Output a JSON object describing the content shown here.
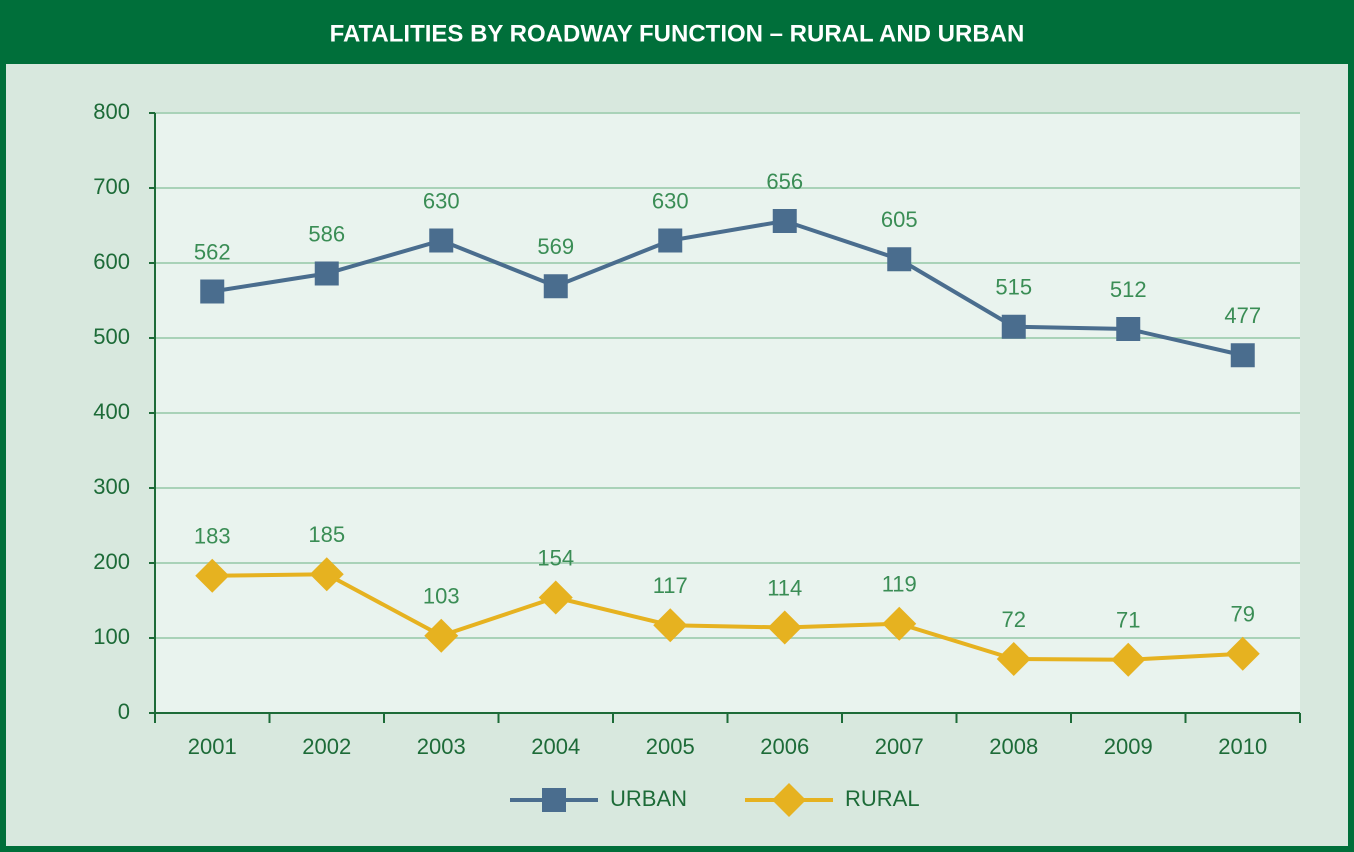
{
  "chart_data": {
    "type": "line",
    "title": "FATALITIES BY ROADWAY FUNCTION – RURAL AND URBAN",
    "categories": [
      "2001",
      "2002",
      "2003",
      "2004",
      "2005",
      "2006",
      "2007",
      "2008",
      "2009",
      "2010"
    ],
    "series": [
      {
        "name": "URBAN",
        "color": "#4a6d8e",
        "marker": "square",
        "values": [
          562,
          586,
          630,
          569,
          630,
          656,
          605,
          515,
          512,
          477
        ]
      },
      {
        "name": "RURAL",
        "color": "#e6b220",
        "marker": "diamond",
        "values": [
          183,
          185,
          103,
          154,
          117,
          114,
          119,
          72,
          71,
          79
        ]
      }
    ],
    "ylim": [
      0,
      800
    ],
    "yticks": [
      0,
      100,
      200,
      300,
      400,
      500,
      600,
      700,
      800
    ],
    "grid": true,
    "legend": "bottom"
  }
}
